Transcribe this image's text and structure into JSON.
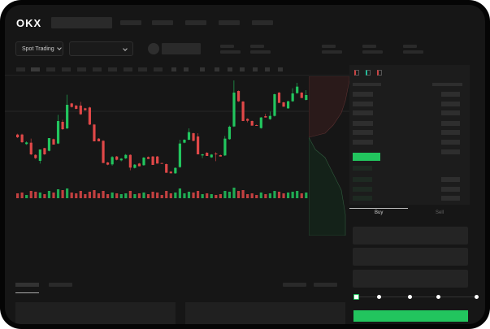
{
  "header": {
    "logo": "OKX"
  },
  "market_selector": {
    "label": "Spot Trading",
    "chevron": "chevron-down-icon"
  },
  "pair_selector": {
    "chevron": "chevron-down-icon"
  },
  "order_form": {
    "buy_tab": "Buy",
    "sell_tab": "Sell",
    "leverage_slider_value": 0
  },
  "colors": {
    "up": "#22c55e",
    "down": "#e04848",
    "background": "#161616"
  },
  "chart_data": {
    "type": "candlestick",
    "candles": [
      [
        185,
        188,
        172,
        175
      ],
      [
        185,
        188,
        154,
        157
      ],
      [
        150,
        160,
        147,
        156
      ],
      [
        155,
        170,
        109,
        112
      ],
      [
        110,
        112,
        95,
        98
      ],
      [
        88,
        130,
        78,
        130
      ],
      [
        135,
        136,
        110,
        112
      ],
      [
        125,
        172,
        123,
        172
      ],
      [
        168,
        170,
        148,
        148
      ],
      [
        152,
        258,
        150,
        235
      ],
      [
        232,
        240,
        202,
        205
      ],
      [
        208,
        332,
        205,
        295
      ],
      [
        300,
        302,
        285,
        287
      ],
      [
        292,
        295,
        278,
        280
      ],
      [
        292,
        306,
        258,
        260
      ],
      [
        282,
        284,
        274,
        275
      ],
      [
        285,
        288,
        220,
        222
      ],
      [
        222,
        224,
        160,
        160
      ],
      [
        170,
        172,
        160,
        160
      ],
      [
        162,
        164,
        80,
        80
      ],
      [
        82,
        84,
        72,
        74
      ],
      [
        75,
        106,
        70,
        102
      ],
      [
        104,
        106,
        90,
        92
      ],
      [
        90,
        98,
        86,
        96
      ],
      [
        97,
        113,
        95,
        110
      ],
      [
        110,
        112,
        53,
        63
      ],
      [
        62,
        76,
        60,
        74
      ],
      [
        78,
        80,
        68,
        68
      ],
      [
        72,
        102,
        70,
        100
      ],
      [
        102,
        104,
        95,
        95
      ],
      [
        104,
        106,
        73,
        73
      ],
      [
        104,
        106,
        78,
        78
      ],
      [
        80,
        80,
        77,
        77
      ],
      [
        76,
        78,
        44,
        44
      ],
      [
        48,
        50,
        42,
        42
      ],
      [
        42,
        64,
        40,
        62
      ],
      [
        65,
        166,
        62,
        152
      ],
      [
        155,
        168,
        153,
        166
      ],
      [
        166,
        208,
        164,
        194
      ],
      [
        190,
        192,
        160,
        162
      ],
      [
        178,
        190,
        112,
        112
      ],
      [
        108,
        114,
        98,
        112
      ],
      [
        118,
        120,
        106,
        106
      ],
      [
        101,
        113,
        99,
        111
      ],
      [
        115,
        120,
        87,
        112
      ],
      [
        109,
        111,
        104,
        104
      ],
      [
        108,
        180,
        106,
        170
      ],
      [
        168,
        218,
        166,
        214
      ],
      [
        215,
        385,
        213,
        340
      ],
      [
        346,
        348,
        306,
        308
      ],
      [
        307,
        309,
        235,
        235
      ],
      [
        243,
        245,
        230,
        236
      ],
      [
        235,
        237,
        218,
        218
      ],
      [
        220,
        222,
        218,
        218
      ],
      [
        209,
        250,
        207,
        248
      ],
      [
        253,
        262,
        248,
        248
      ],
      [
        242,
        270,
        240,
        254
      ],
      [
        254,
        336,
        252,
        334
      ],
      [
        340,
        342,
        302,
        302
      ],
      [
        304,
        306,
        288,
        288
      ],
      [
        282,
        310,
        280,
        308
      ],
      [
        308,
        356,
        306,
        337
      ],
      [
        338,
        376,
        336,
        362
      ],
      [
        340,
        342,
        320,
        320
      ],
      [
        313,
        349,
        311,
        331
      ]
    ],
    "volumes": [
      6,
      7,
      4,
      9,
      8,
      7,
      5,
      9,
      7,
      11,
      10,
      12,
      7,
      6,
      9,
      5,
      8,
      10,
      6,
      9,
      5,
      7,
      6,
      5,
      6,
      9,
      5,
      6,
      7,
      5,
      8,
      7,
      4,
      9,
      6,
      7,
      12,
      6,
      8,
      7,
      9,
      5,
      6,
      5,
      4,
      5,
      9,
      8,
      13,
      9,
      10,
      5,
      6,
      4,
      7,
      5,
      6,
      9,
      8,
      6,
      7,
      8,
      9,
      6,
      7
    ]
  }
}
